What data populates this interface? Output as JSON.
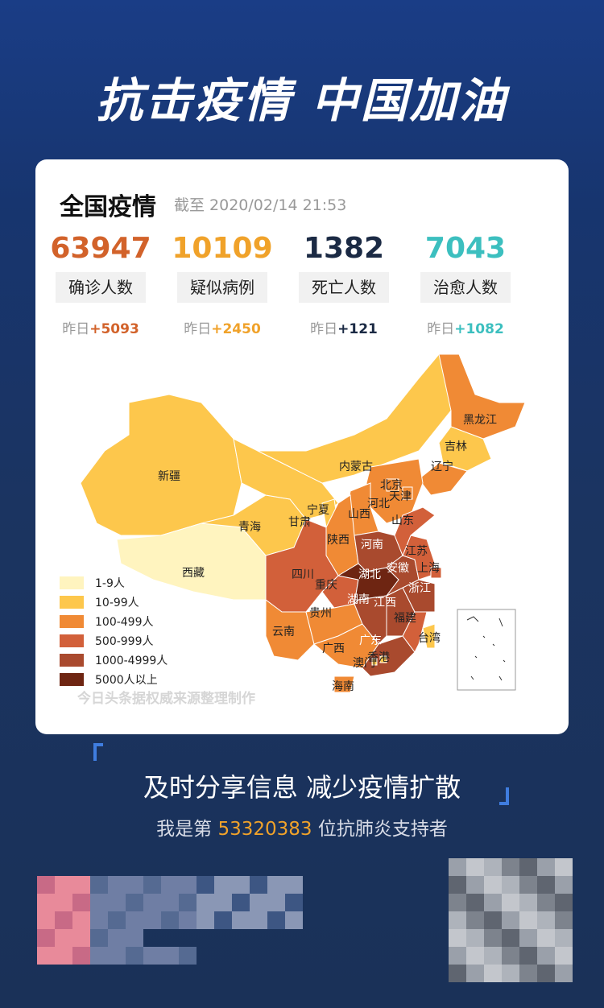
{
  "header": {
    "title": "抗击疫情 中国加油"
  },
  "card": {
    "title": "全国疫情",
    "date": "截至 2020/02/14 21:53",
    "stats": [
      {
        "value": "63947",
        "label": "确诊人数",
        "prefix": "昨日",
        "delta": "+5093",
        "color": "#d2622a"
      },
      {
        "value": "10109",
        "label": "疑似病例",
        "prefix": "昨日",
        "delta": "+2450",
        "color": "#f0a22a"
      },
      {
        "value": "1382",
        "label": "死亡人数",
        "prefix": "昨日",
        "delta": "+121",
        "color": "#1b2a44"
      },
      {
        "value": "7043",
        "label": "治愈人数",
        "prefix": "昨日",
        "delta": "+1082",
        "color": "#3cbfbf"
      }
    ]
  },
  "map": {
    "legend": [
      {
        "label": "1-9人",
        "color": "#fff4bf"
      },
      {
        "label": "10-99人",
        "color": "#fdc74c"
      },
      {
        "label": "100-499人",
        "color": "#f08a35"
      },
      {
        "label": "500-999人",
        "color": "#d2603a"
      },
      {
        "label": "1000-4999人",
        "color": "#a94a2e"
      },
      {
        "label": "5000人以上",
        "color": "#6e2512"
      }
    ],
    "provinces": [
      {
        "name": "新疆",
        "level": 1
      },
      {
        "name": "西藏",
        "level": 0
      },
      {
        "name": "青海",
        "level": 1
      },
      {
        "name": "甘肃",
        "level": 1
      },
      {
        "name": "内蒙古",
        "level": 1
      },
      {
        "name": "黑龙江",
        "level": 2
      },
      {
        "name": "吉林",
        "level": 1
      },
      {
        "name": "辽宁",
        "level": 2
      },
      {
        "name": "河北",
        "level": 2
      },
      {
        "name": "北京",
        "level": 2
      },
      {
        "name": "天津",
        "level": 2
      },
      {
        "name": "山西",
        "level": 2
      },
      {
        "name": "宁夏",
        "level": 1
      },
      {
        "name": "陕西",
        "level": 2
      },
      {
        "name": "四川",
        "level": 3
      },
      {
        "name": "重庆",
        "level": 3
      },
      {
        "name": "云南",
        "level": 2
      },
      {
        "name": "贵州",
        "level": 2
      },
      {
        "name": "广西",
        "level": 2
      },
      {
        "name": "广东",
        "level": 4
      },
      {
        "name": "海南",
        "level": 2
      },
      {
        "name": "河南",
        "level": 4
      },
      {
        "name": "湖北",
        "level": 5
      },
      {
        "name": "湖南",
        "level": 4
      },
      {
        "name": "江西",
        "level": 4
      },
      {
        "name": "福建",
        "level": 3
      },
      {
        "name": "浙江",
        "level": 4
      },
      {
        "name": "安徽",
        "level": 4
      },
      {
        "name": "江苏",
        "level": 3
      },
      {
        "name": "上海",
        "level": 3
      },
      {
        "name": "山东",
        "level": 3
      },
      {
        "name": "台湾",
        "level": 1
      },
      {
        "name": "香港",
        "level": 1
      },
      {
        "name": "澳门",
        "level": 1
      }
    ],
    "source": "今日头条据权威来源整理制作"
  },
  "footer": {
    "slogan": "及时分享信息 减少疫情扩散",
    "supporter_prefix": "我是第",
    "supporter_number": "53320383",
    "supporter_suffix": "位抗肺炎支持者"
  }
}
